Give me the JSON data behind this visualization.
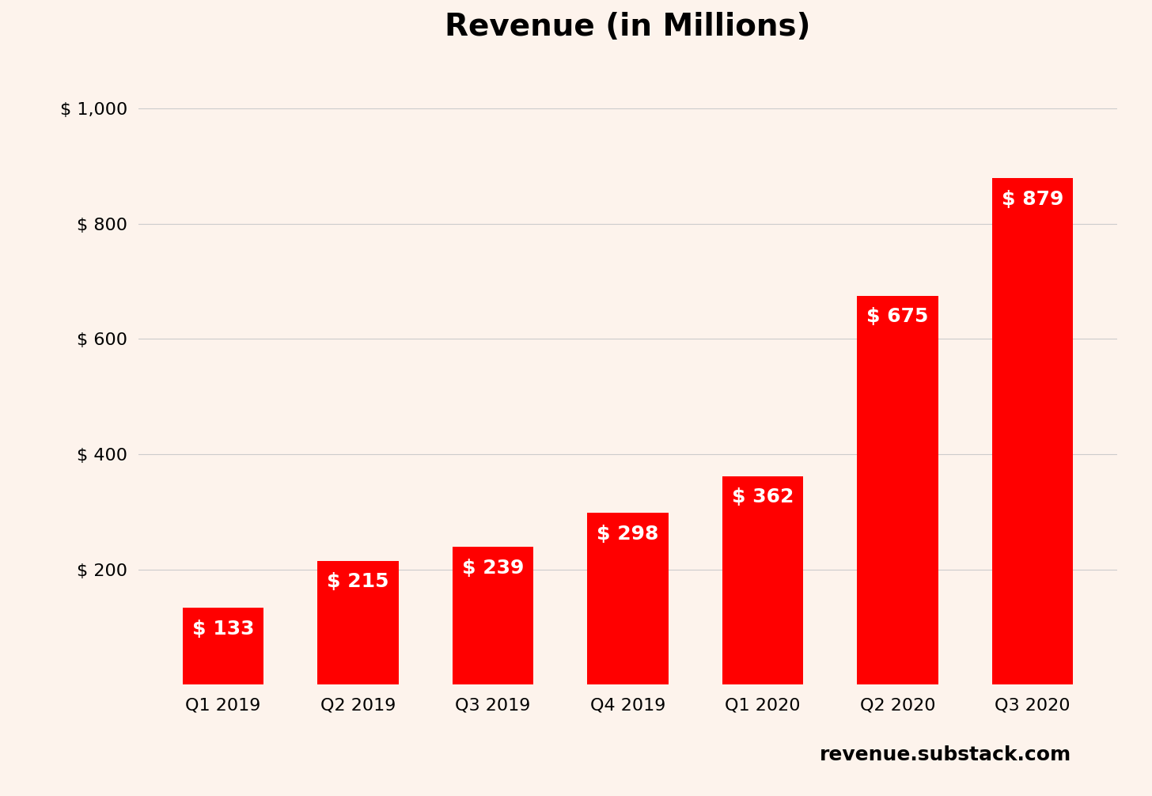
{
  "title": "Revenue (in Millions)",
  "categories": [
    "Q1 2019",
    "Q2 2019",
    "Q3 2019",
    "Q4 2019",
    "Q1 2020",
    "Q2 2020",
    "Q3 2020"
  ],
  "values": [
    133,
    215,
    239,
    298,
    362,
    675,
    879
  ],
  "bar_color": "#ff0000",
  "background_color": "#fdf3ec",
  "title_fontsize": 28,
  "tick_label_fontsize": 16,
  "bar_label_fontsize": 18,
  "watermark_text": "revenue.substack.com",
  "watermark_fontsize": 18,
  "ylim": [
    0,
    1050
  ],
  "yticks": [
    200,
    400,
    600,
    800,
    1000
  ],
  "ytick_labels": [
    "$ 200",
    "$ 400",
    "$ 600",
    "$ 800",
    "$ 1,000"
  ],
  "grid_color": "#cccccc",
  "text_color": "#000000",
  "bar_text_color": "#ffffff"
}
